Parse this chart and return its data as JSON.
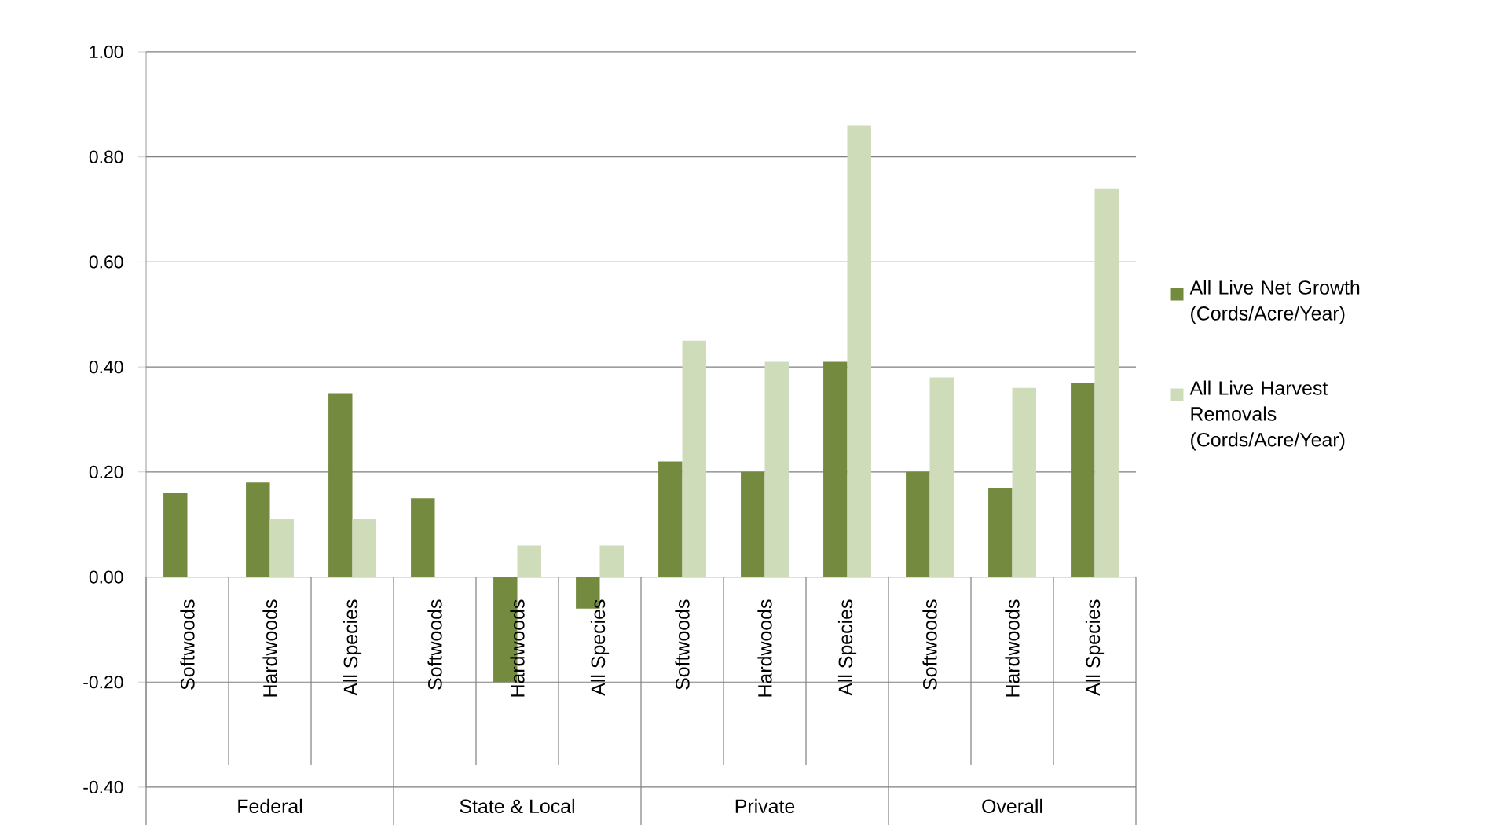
{
  "chart_data": {
    "type": "bar",
    "categories": [
      "Softwoods",
      "Hardwoods",
      "All Species",
      "Softwoods",
      "Hardwoods",
      "All Species",
      "Softwoods",
      "Hardwoods",
      "All Species",
      "Softwoods",
      "Hardwoods",
      "All Species"
    ],
    "series": [
      {
        "name": "All Live Net Growth (Cords/Acre/Year)",
        "color": "#748b3f",
        "values": [
          0.16,
          0.18,
          0.35,
          0.15,
          -0.2,
          -0.06,
          0.22,
          0.2,
          0.41,
          0.2,
          0.17,
          0.37
        ]
      },
      {
        "name": "All Live Harvest Removals (Cords/Acre/Year)",
        "color": "#cfdcba",
        "values": [
          null,
          0.11,
          0.11,
          null,
          0.06,
          0.06,
          0.45,
          0.41,
          0.86,
          0.38,
          0.36,
          0.74
        ]
      }
    ],
    "annotations": [
      "Federal",
      "State & Local",
      "Private",
      "Overall"
    ],
    "ylim": [
      -0.4,
      1.0
    ],
    "yticks": [
      {
        "value": -0.4,
        "label": "-0.40"
      },
      {
        "value": -0.2,
        "label": "-0.20"
      },
      {
        "value": 0,
        "label": "0.00"
      },
      {
        "value": 0.2,
        "label": "0.20"
      },
      {
        "value": 0.4,
        "label": "0.40"
      },
      {
        "value": 0.6,
        "label": "0.60"
      },
      {
        "value": 0.8,
        "label": "0.80"
      },
      {
        "value": 1.0,
        "label": "1.00"
      }
    ],
    "grid": "y",
    "legend": "right"
  }
}
